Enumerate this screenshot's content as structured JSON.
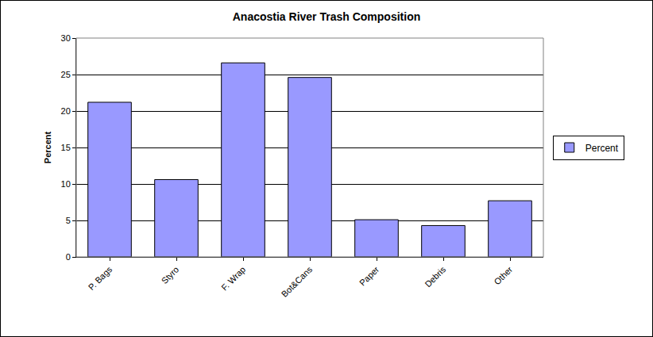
{
  "chart_data": {
    "type": "bar",
    "title": "Anacostia River Trash Composition",
    "y_label": "Percent",
    "categories": [
      "P. Bags",
      "Styro",
      "F. Wrap",
      "Bot&Cans",
      "Paper",
      "Debris",
      "Other"
    ],
    "series": [
      {
        "name": "Percent",
        "color": "#9999ff",
        "values": [
          21.2,
          10.6,
          26.6,
          24.6,
          5.1,
          4.3,
          7.7
        ]
      }
    ],
    "ylim": [
      0,
      30
    ],
    "yticks": [
      0,
      5,
      10,
      15,
      20,
      25,
      30
    ],
    "grid": true,
    "legend": "right"
  }
}
